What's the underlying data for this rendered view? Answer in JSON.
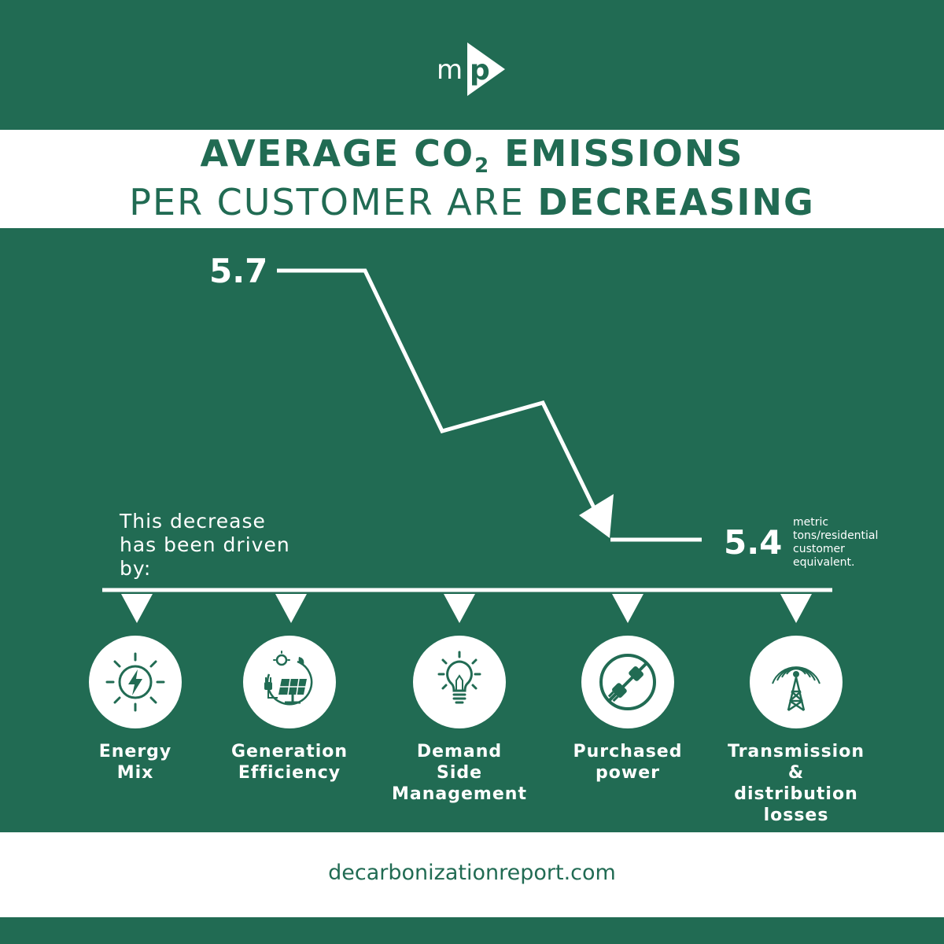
{
  "brand": {
    "logo_text": "mp"
  },
  "title": {
    "line1_prefix": "AVERAGE CO",
    "line1_sub": "2",
    "line1_suffix": " EMISSIONS",
    "line2_regular": "PER CUSTOMER ARE ",
    "line2_bold": "DECREASING"
  },
  "chart_data": {
    "type": "line",
    "series": [
      {
        "values": [
          5.7,
          5.4
        ]
      }
    ],
    "start_label": "5.7",
    "end_label": "5.4",
    "unit_note": "metric tons/residential customer equivalent."
  },
  "drivers": {
    "intro": "This decrease has been driven by:",
    "items": [
      {
        "label_line1": "Energy",
        "label_line2": "Mix",
        "label_line3": "",
        "icon": "lightning-icon"
      },
      {
        "label_line1": "Generation",
        "label_line2": "Efficiency",
        "label_line3": "",
        "icon": "solar-panel-icon"
      },
      {
        "label_line1": "Demand",
        "label_line2": "Side",
        "label_line3": "Management",
        "icon": "lightbulb-icon"
      },
      {
        "label_line1": "Purchased",
        "label_line2": "power",
        "label_line3": "",
        "icon": "plug-icon"
      },
      {
        "label_line1": "Transmission &",
        "label_line2": "distribution",
        "label_line3": "losses",
        "icon": "tower-icon"
      }
    ]
  },
  "footer": {
    "url": "decarbonizationreport.com"
  },
  "colors": {
    "primary": "#216b53",
    "white": "#ffffff"
  }
}
